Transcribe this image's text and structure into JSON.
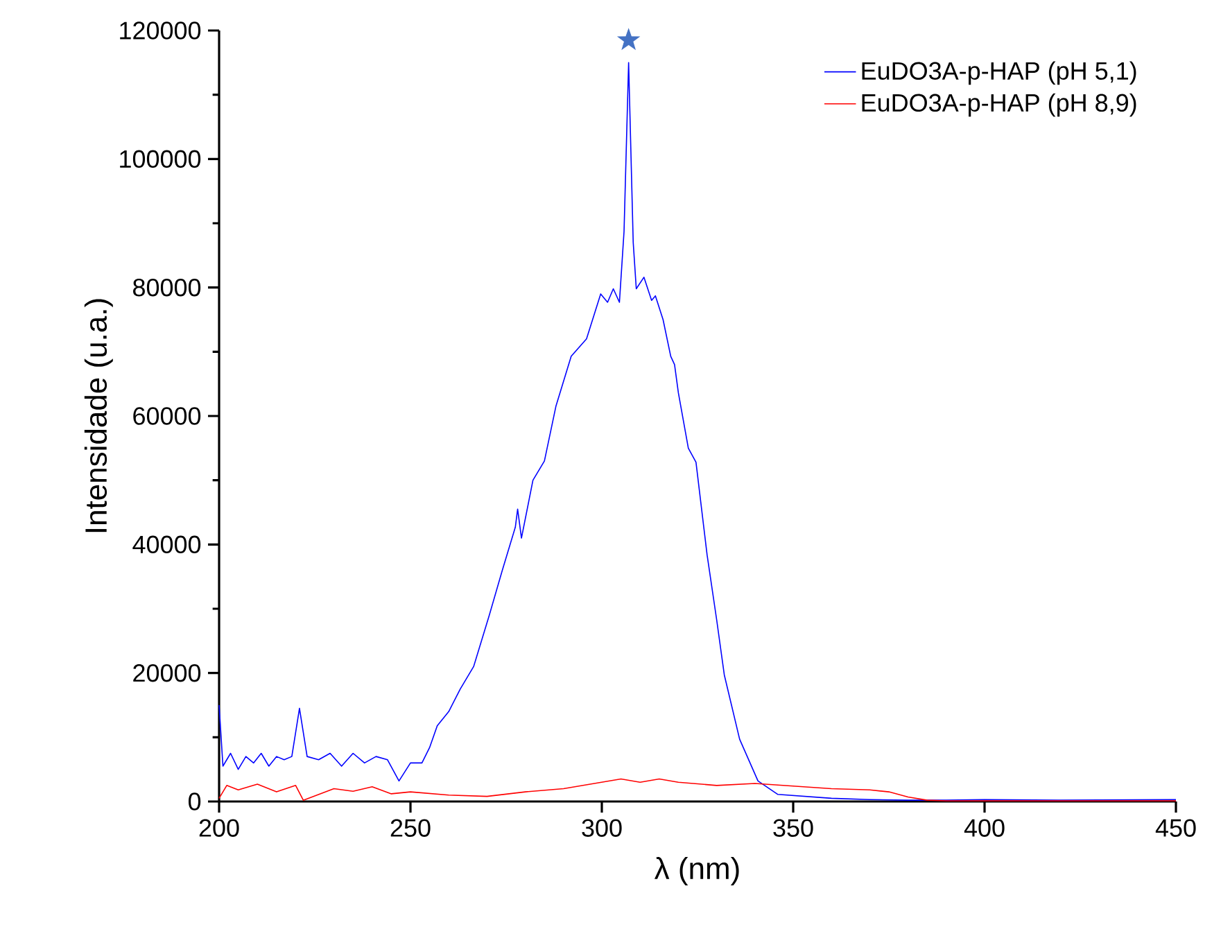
{
  "chart_data": {
    "type": "line",
    "xlabel": "λ (nm)",
    "ylabel": "Intensidade (u.a.)",
    "xlim": [
      200,
      450
    ],
    "xticks": [
      200,
      250,
      300,
      350,
      400,
      450
    ],
    "ylim": [
      0,
      120000
    ],
    "yticks": [
      0,
      20000,
      40000,
      60000,
      80000,
      100000,
      120000
    ],
    "grid": false,
    "legend": "top right",
    "series": [
      {
        "name": "EuDO3A-p-HAP (pH 5,1)",
        "color": "#0000ff",
        "marker": "none",
        "x": [
          200,
          201,
          203,
          205,
          207,
          209,
          211,
          213,
          215,
          217,
          219,
          221,
          223,
          226,
          229,
          232,
          235,
          238,
          241,
          244,
          247,
          250,
          253,
          255,
          257,
          260,
          263,
          266.5,
          270.6,
          274,
          277.4,
          278,
          279,
          282,
          285,
          288,
          292,
          296,
          299.7,
          301.5,
          303,
          304.6,
          305.8,
          307,
          308.2,
          309,
          311,
          313,
          314,
          316,
          318,
          319,
          320,
          322.6,
          324.6,
          327.5,
          330,
          332,
          336,
          340.8,
          346,
          353,
          360,
          370,
          380,
          390,
          400,
          420,
          450
        ],
        "values": [
          15000,
          5500,
          7500,
          5000,
          7000,
          6000,
          7500,
          5500,
          7000,
          6500,
          7000,
          14500,
          7000,
          6500,
          7500,
          5500,
          7500,
          6000,
          7000,
          6500,
          3200,
          6000,
          6000,
          8400,
          11800,
          14000,
          17500,
          21000,
          29000,
          36000,
          42700,
          45500,
          41000,
          50000,
          53000,
          61500,
          69300,
          72000,
          79000,
          77700,
          79800,
          77700,
          88700,
          115000,
          87000,
          79800,
          81600,
          78000,
          78700,
          75000,
          69300,
          68000,
          63600,
          55000,
          52800,
          38400,
          28300,
          19700,
          9700,
          3200,
          1100,
          800,
          500,
          300,
          200,
          200,
          300,
          200,
          300
        ]
      },
      {
        "name": "EuDO3A-p-HAP (pH 8,9)",
        "color": "#ff0000",
        "marker": "none",
        "x": [
          200,
          202,
          205,
          210,
          215,
          220,
          222,
          230,
          235,
          240,
          245,
          250,
          260,
          270,
          280,
          290,
          300,
          305,
          310,
          315,
          320,
          330,
          340,
          350,
          360,
          370,
          375,
          380,
          385,
          390,
          450
        ],
        "values": [
          500,
          2500,
          1800,
          2700,
          1500,
          2500,
          200,
          2000,
          1600,
          2300,
          1200,
          1500,
          1000,
          800,
          1500,
          2000,
          3000,
          3500,
          3000,
          3500,
          3000,
          2500,
          2800,
          2400,
          2000,
          1800,
          1500,
          700,
          200,
          100,
          100
        ]
      },
      {
        "type": "scatter",
        "color": "#4472c4",
        "marker": "star",
        "x": [
          307
        ],
        "values": [
          118500
        ]
      }
    ]
  }
}
